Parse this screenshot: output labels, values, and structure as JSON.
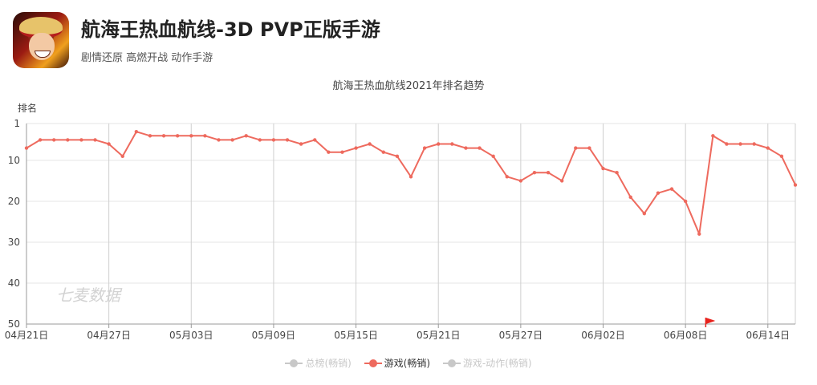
{
  "app": {
    "title": "航海王热血航线-3D PVP正版手游",
    "subtitle": "剧情还原 高燃开战 动作手游"
  },
  "watermark": "七麦数据",
  "colors": {
    "line": "#ee6a5e",
    "legend_inactive": "#c8c8c8",
    "grid": "#e5e5e5",
    "vgrid": "#cfcfcf",
    "marker": "#e8221c"
  },
  "legend": [
    {
      "label": "总榜(畅销)",
      "active": false
    },
    {
      "label": "游戏(畅销)",
      "active": true
    },
    {
      "label": "游戏-动作(畅销)",
      "active": false
    }
  ],
  "chart_data": {
    "type": "line",
    "title": "航海王热血航线2021年排名趋势",
    "ylabel": "排名",
    "y_inverted": true,
    "ylim": [
      1,
      50
    ],
    "yticks": [
      1,
      10,
      20,
      30,
      40,
      50
    ],
    "x_start": "2021-04-21",
    "x_end": "2021-06-17",
    "xticks": [
      "04月21日",
      "04月27日",
      "05月03日",
      "05月09日",
      "05月15日",
      "05月21日",
      "05月27日",
      "06月02日",
      "06月08日",
      "06月14日"
    ],
    "marker_date": "06月08日",
    "series": [
      {
        "name": "游戏(畅销)",
        "values": [
          7,
          5,
          5,
          5,
          5,
          5,
          6,
          9,
          3,
          4,
          4,
          4,
          4,
          4,
          5,
          5,
          4,
          5,
          5,
          5,
          6,
          5,
          8,
          8,
          7,
          6,
          8,
          9,
          14,
          7,
          6,
          6,
          7,
          7,
          9,
          14,
          15,
          13,
          13,
          15,
          7,
          7,
          12,
          13,
          19,
          23,
          18,
          17,
          20,
          28,
          4,
          6,
          6,
          6,
          7,
          9,
          16
        ]
      }
    ]
  }
}
